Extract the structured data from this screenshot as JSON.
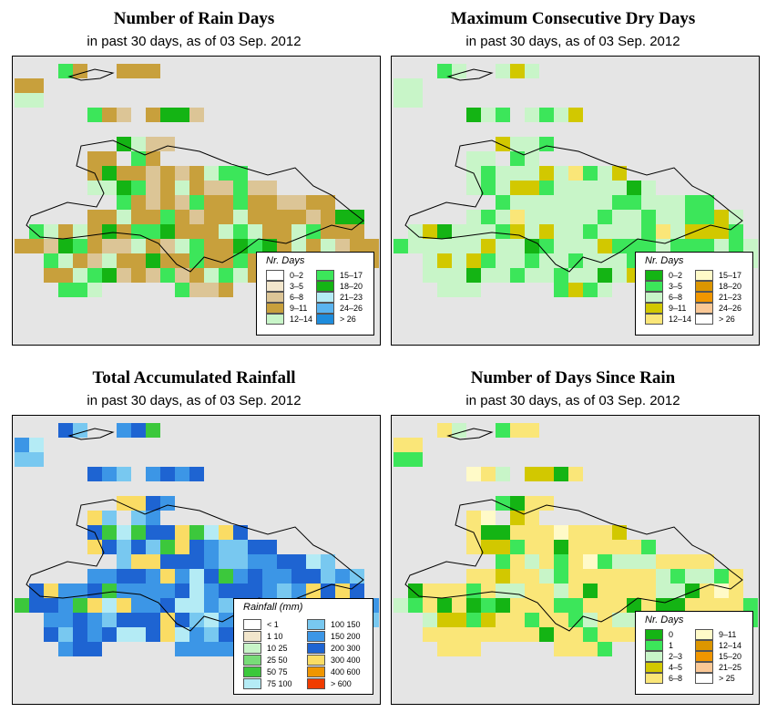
{
  "panels": [
    {
      "title": "Number of Rain Days",
      "subtitle": "in past 30 days, as of  03 Sep. 2012",
      "legend": {
        "title": "Nr. Days",
        "items": [
          {
            "label": "0–2",
            "color": "#ffffff"
          },
          {
            "label": "3–5",
            "color": "#f2e6cc"
          },
          {
            "label": "6–8",
            "color": "#dcc596"
          },
          {
            "label": "9–11",
            "color": "#c8a03c"
          },
          {
            "label": "12–14",
            "color": "#c8f5c8"
          },
          {
            "label": "15–17",
            "color": "#3ce65a"
          },
          {
            "label": "18–20",
            "color": "#14b414"
          },
          {
            "label": "21–23",
            "color": "#b4ebf5"
          },
          {
            "label": "24–26",
            "color": "#5ab4f0"
          },
          {
            "label": "> 26",
            "color": "#1e8cdc"
          }
        ]
      }
    },
    {
      "title": "Maximum Consecutive Dry Days",
      "subtitle": "in past 30 days, as of  03 Sep. 2012",
      "legend": {
        "title": "Nr. Days",
        "items": [
          {
            "label": "0–2",
            "color": "#14b414"
          },
          {
            "label": "3–5",
            "color": "#3ce65a"
          },
          {
            "label": "6–8",
            "color": "#c8f5c8"
          },
          {
            "label": "9–11",
            "color": "#d2c800"
          },
          {
            "label": "12–14",
            "color": "#fae678"
          },
          {
            "label": "15–17",
            "color": "#fffac8"
          },
          {
            "label": "18–20",
            "color": "#dc9600"
          },
          {
            "label": "21–23",
            "color": "#f09600"
          },
          {
            "label": "24–26",
            "color": "#fac896"
          },
          {
            "label": "> 26",
            "color": "#ffffff"
          }
        ]
      }
    },
    {
      "title": "Total Accumulated Rainfall",
      "subtitle": "in past 30 days, as of  03 Sep. 2012",
      "legend": {
        "title": "Rainfall (mm)",
        "items": [
          {
            "label": "< 1",
            "color": "#ffffff"
          },
          {
            "label": "1    10",
            "color": "#f2e6cc"
          },
          {
            "label": "10    25",
            "color": "#c8f5c8"
          },
          {
            "label": "25    50",
            "color": "#78dc78"
          },
          {
            "label": "50    75",
            "color": "#3cc83c"
          },
          {
            "label": "75    100",
            "color": "#b4ebf5"
          },
          {
            "label": "100    150",
            "color": "#78c8f0"
          },
          {
            "label": "150    200",
            "color": "#3c96e6"
          },
          {
            "label": "200    300",
            "color": "#1e64d2"
          },
          {
            "label": "300    400",
            "color": "#fadc64"
          },
          {
            "label": "400    600",
            "color": "#f09600"
          },
          {
            "label": "> 600",
            "color": "#f03c00"
          }
        ]
      }
    },
    {
      "title": "Number of Days Since Rain",
      "subtitle": "in past 30 days, as of  03 Sep. 2012",
      "legend": {
        "title": "Nr. Days",
        "items": [
          {
            "label": "0",
            "color": "#14b414"
          },
          {
            "label": "1",
            "color": "#3ce65a"
          },
          {
            "label": "2–3",
            "color": "#c8f5c8"
          },
          {
            "label": "4–5",
            "color": "#d2c800"
          },
          {
            "label": "6–8",
            "color": "#fae678"
          },
          {
            "label": "9–11",
            "color": "#fffac8"
          },
          {
            "label": "12–14",
            "color": "#dc9600"
          },
          {
            "label": "15–20",
            "color": "#f09600"
          },
          {
            "label": "21–25",
            "color": "#fac896"
          },
          {
            "label": "> 25",
            "color": "#ffffff"
          }
        ]
      }
    }
  ]
}
